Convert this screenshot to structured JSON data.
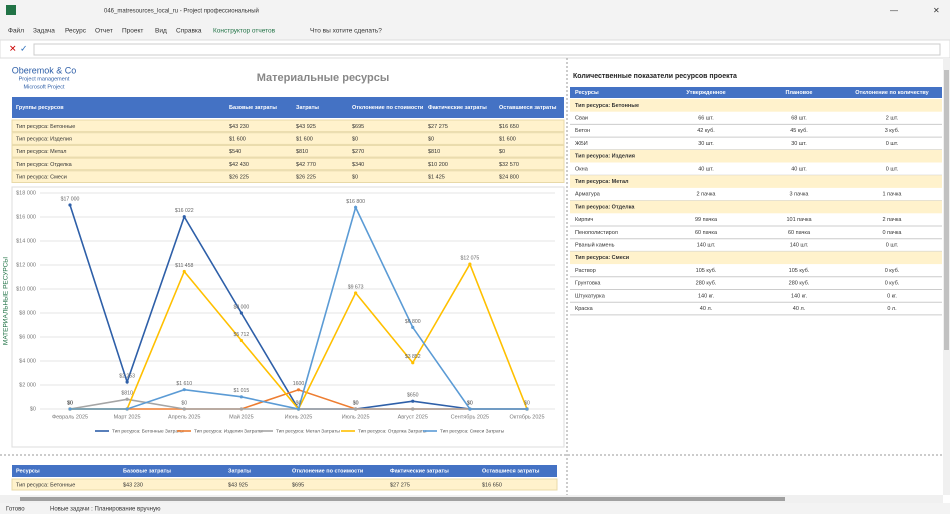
{
  "window": {
    "title": "046_matresources_local_ru - Project профессиональный"
  },
  "menu": {
    "items": [
      "Файл",
      "Задача",
      "Ресурс",
      "Отчет",
      "Проект",
      "Вид",
      "Справка",
      "Конструктор отчетов"
    ],
    "search": "Что вы хотите сделать?"
  },
  "report": {
    "logo": {
      "name": "Oberemok & Co",
      "line1": "Project management",
      "line2": "Microsoft Project"
    },
    "title": "Материальные ресурсы",
    "cost_table": {
      "headers": [
        "Группы ресурсов",
        "Базовые затраты",
        "Затраты",
        "Отклонение по стоимости",
        "Фактические затраты",
        "Оставшиеся затраты"
      ],
      "rows": [
        [
          "Тип ресурса: Бетонные",
          "$43 230",
          "$43 925",
          "$695",
          "$27 275",
          "$16 650"
        ],
        [
          "Тип ресурса: Изделия",
          "$1 600",
          "$1 600",
          "$0",
          "$0",
          "$1 600"
        ],
        [
          "Тип ресурса: Метал",
          "$540",
          "$810",
          "$270",
          "$810",
          "$0"
        ],
        [
          "Тип ресурса: Отделка",
          "$42 430",
          "$42 770",
          "$340",
          "$10 200",
          "$32 570"
        ],
        [
          "Тип ресурса: Смеси",
          "$26 225",
          "$26 225",
          "$0",
          "$1 425",
          "$24 800"
        ]
      ]
    }
  },
  "chart_data": {
    "type": "line",
    "ylabel": "МАТЕРИАЛЬНЫЕ РЕСУРСЫ",
    "categories": [
      "Февраль 2025",
      "Март 2025",
      "Апрель 2025",
      "Май 2025",
      "Июнь 2025",
      "Июль 2025",
      "Август 2025",
      "Сентябрь 2025",
      "Октябрь 2025"
    ],
    "ylim": [
      0,
      18000
    ],
    "grid": true,
    "yticks": [
      {
        "value": 0,
        "label": "$0"
      },
      {
        "value": 2000,
        "label": "$2 000"
      },
      {
        "value": 4000,
        "label": "$4 000"
      },
      {
        "value": 6000,
        "label": "$6 000"
      },
      {
        "value": 8000,
        "label": "$8 000"
      },
      {
        "value": 10000,
        "label": "$10 000"
      },
      {
        "value": 12000,
        "label": "$12 000"
      },
      {
        "value": 14000,
        "label": "$14 000"
      },
      {
        "value": 16000,
        "label": "$16 000"
      },
      {
        "value": 18000,
        "label": "$18 000"
      }
    ],
    "series": [
      {
        "name": "Тип ресурса: Бетонные Затраты",
        "color": "#2e5fa8",
        "values": [
          17000,
          2253,
          16022,
          8000,
          0,
          0,
          650,
          0,
          0
        ],
        "value_labels": [
          "$17 000",
          "$2 253",
          "$16 022",
          "$8 000",
          null,
          "$0",
          "$650",
          "$0",
          null
        ]
      },
      {
        "name": "Тип ресурса: Изделия Затраты",
        "color": "#ed7d31",
        "values": [
          0,
          0,
          0,
          0,
          1600,
          0,
          0,
          0,
          0
        ],
        "value_labels": [
          "$0",
          null,
          null,
          null,
          "1600",
          "$0",
          null,
          null,
          null
        ]
      },
      {
        "name": "Тип ресурса: Метал Затраты",
        "color": "#a5a5a5",
        "values": [
          0,
          810,
          0,
          0,
          0,
          0,
          0,
          0,
          0
        ],
        "value_labels": [
          "$0",
          "$810",
          "$0",
          null,
          null,
          null,
          null,
          null,
          null
        ]
      },
      {
        "name": "Тип ресурса: Отделка Затраты",
        "color": "#ffc000",
        "values": [
          0,
          0,
          11458,
          5712,
          0,
          9673,
          3852,
          12075,
          0
        ],
        "value_labels": [
          null,
          null,
          "$11 458",
          "$5 712",
          null,
          "$9 673",
          "$3 852",
          "$12 075",
          "$0"
        ]
      },
      {
        "name": "Тип ресурса: Смеси Затраты",
        "color": "#5b9bd5",
        "values": [
          0,
          0,
          1610,
          1015,
          0,
          16800,
          6800,
          0,
          0
        ],
        "value_labels": [
          "$0",
          null,
          "$1 610",
          "$1 015",
          "$0",
          "$16 800",
          "$6 800",
          "$0",
          null
        ]
      }
    ]
  },
  "quantity": {
    "title": "Количественные показатели ресурсов проекта",
    "headers": [
      "Ресурсы",
      "Утвержденное",
      "Плановое",
      "Отклонение по количеству"
    ],
    "groups": [
      {
        "name": "Тип ресурса: Бетонные",
        "items": [
          [
            "Сваи",
            "66 шт.",
            "68 шт.",
            "2 шт."
          ],
          [
            "Бетон",
            "42 куб.",
            "45 куб.",
            "3 куб."
          ],
          [
            "ЖБИ",
            "30 шт.",
            "30 шт.",
            "0 шт."
          ]
        ]
      },
      {
        "name": "Тип ресурса: Изделия",
        "items": [
          [
            "Окна",
            "40 шт.",
            "40 шт.",
            "0 шт."
          ]
        ]
      },
      {
        "name": "Тип ресурса: Метал",
        "items": [
          [
            "Арматура",
            "2 пачка",
            "3 пачка",
            "1 пачка"
          ]
        ]
      },
      {
        "name": "Тип ресурса: Отделка",
        "items": [
          [
            "Кирпич",
            "99 пачка",
            "101 пачка",
            "2 пачка"
          ],
          [
            "Пенополистирол",
            "60 пачка",
            "60 пачка",
            "0 пачка"
          ],
          [
            "Рваный камень",
            "140 шт.",
            "140 шт.",
            "0 шт."
          ]
        ]
      },
      {
        "name": "Тип ресурса: Смеси",
        "items": [
          [
            "Раствор",
            "105 куб.",
            "105 куб.",
            "0 куб."
          ],
          [
            "Грунтовка",
            "280 куб.",
            "280 куб.",
            "0 куб."
          ],
          [
            "Штукатурка",
            "140 кг.",
            "140 кг.",
            "0 кг."
          ],
          [
            "Краска",
            "40 л.",
            "40 л.",
            "0 л."
          ]
        ]
      }
    ]
  },
  "bottom_table": {
    "headers": [
      "Ресурсы",
      "Базовые затраты",
      "Затраты",
      "Отклонение по стоимости",
      "Фактические затраты",
      "Оставшиеся затраты"
    ],
    "rows": [
      [
        "Тип ресурса: Бетонные",
        "$43 230",
        "$43 925",
        "$695",
        "$27 275",
        "$16 650"
      ]
    ]
  },
  "status": {
    "ready": "Готово",
    "mode": "Новые задачи : Планирование вручную"
  }
}
